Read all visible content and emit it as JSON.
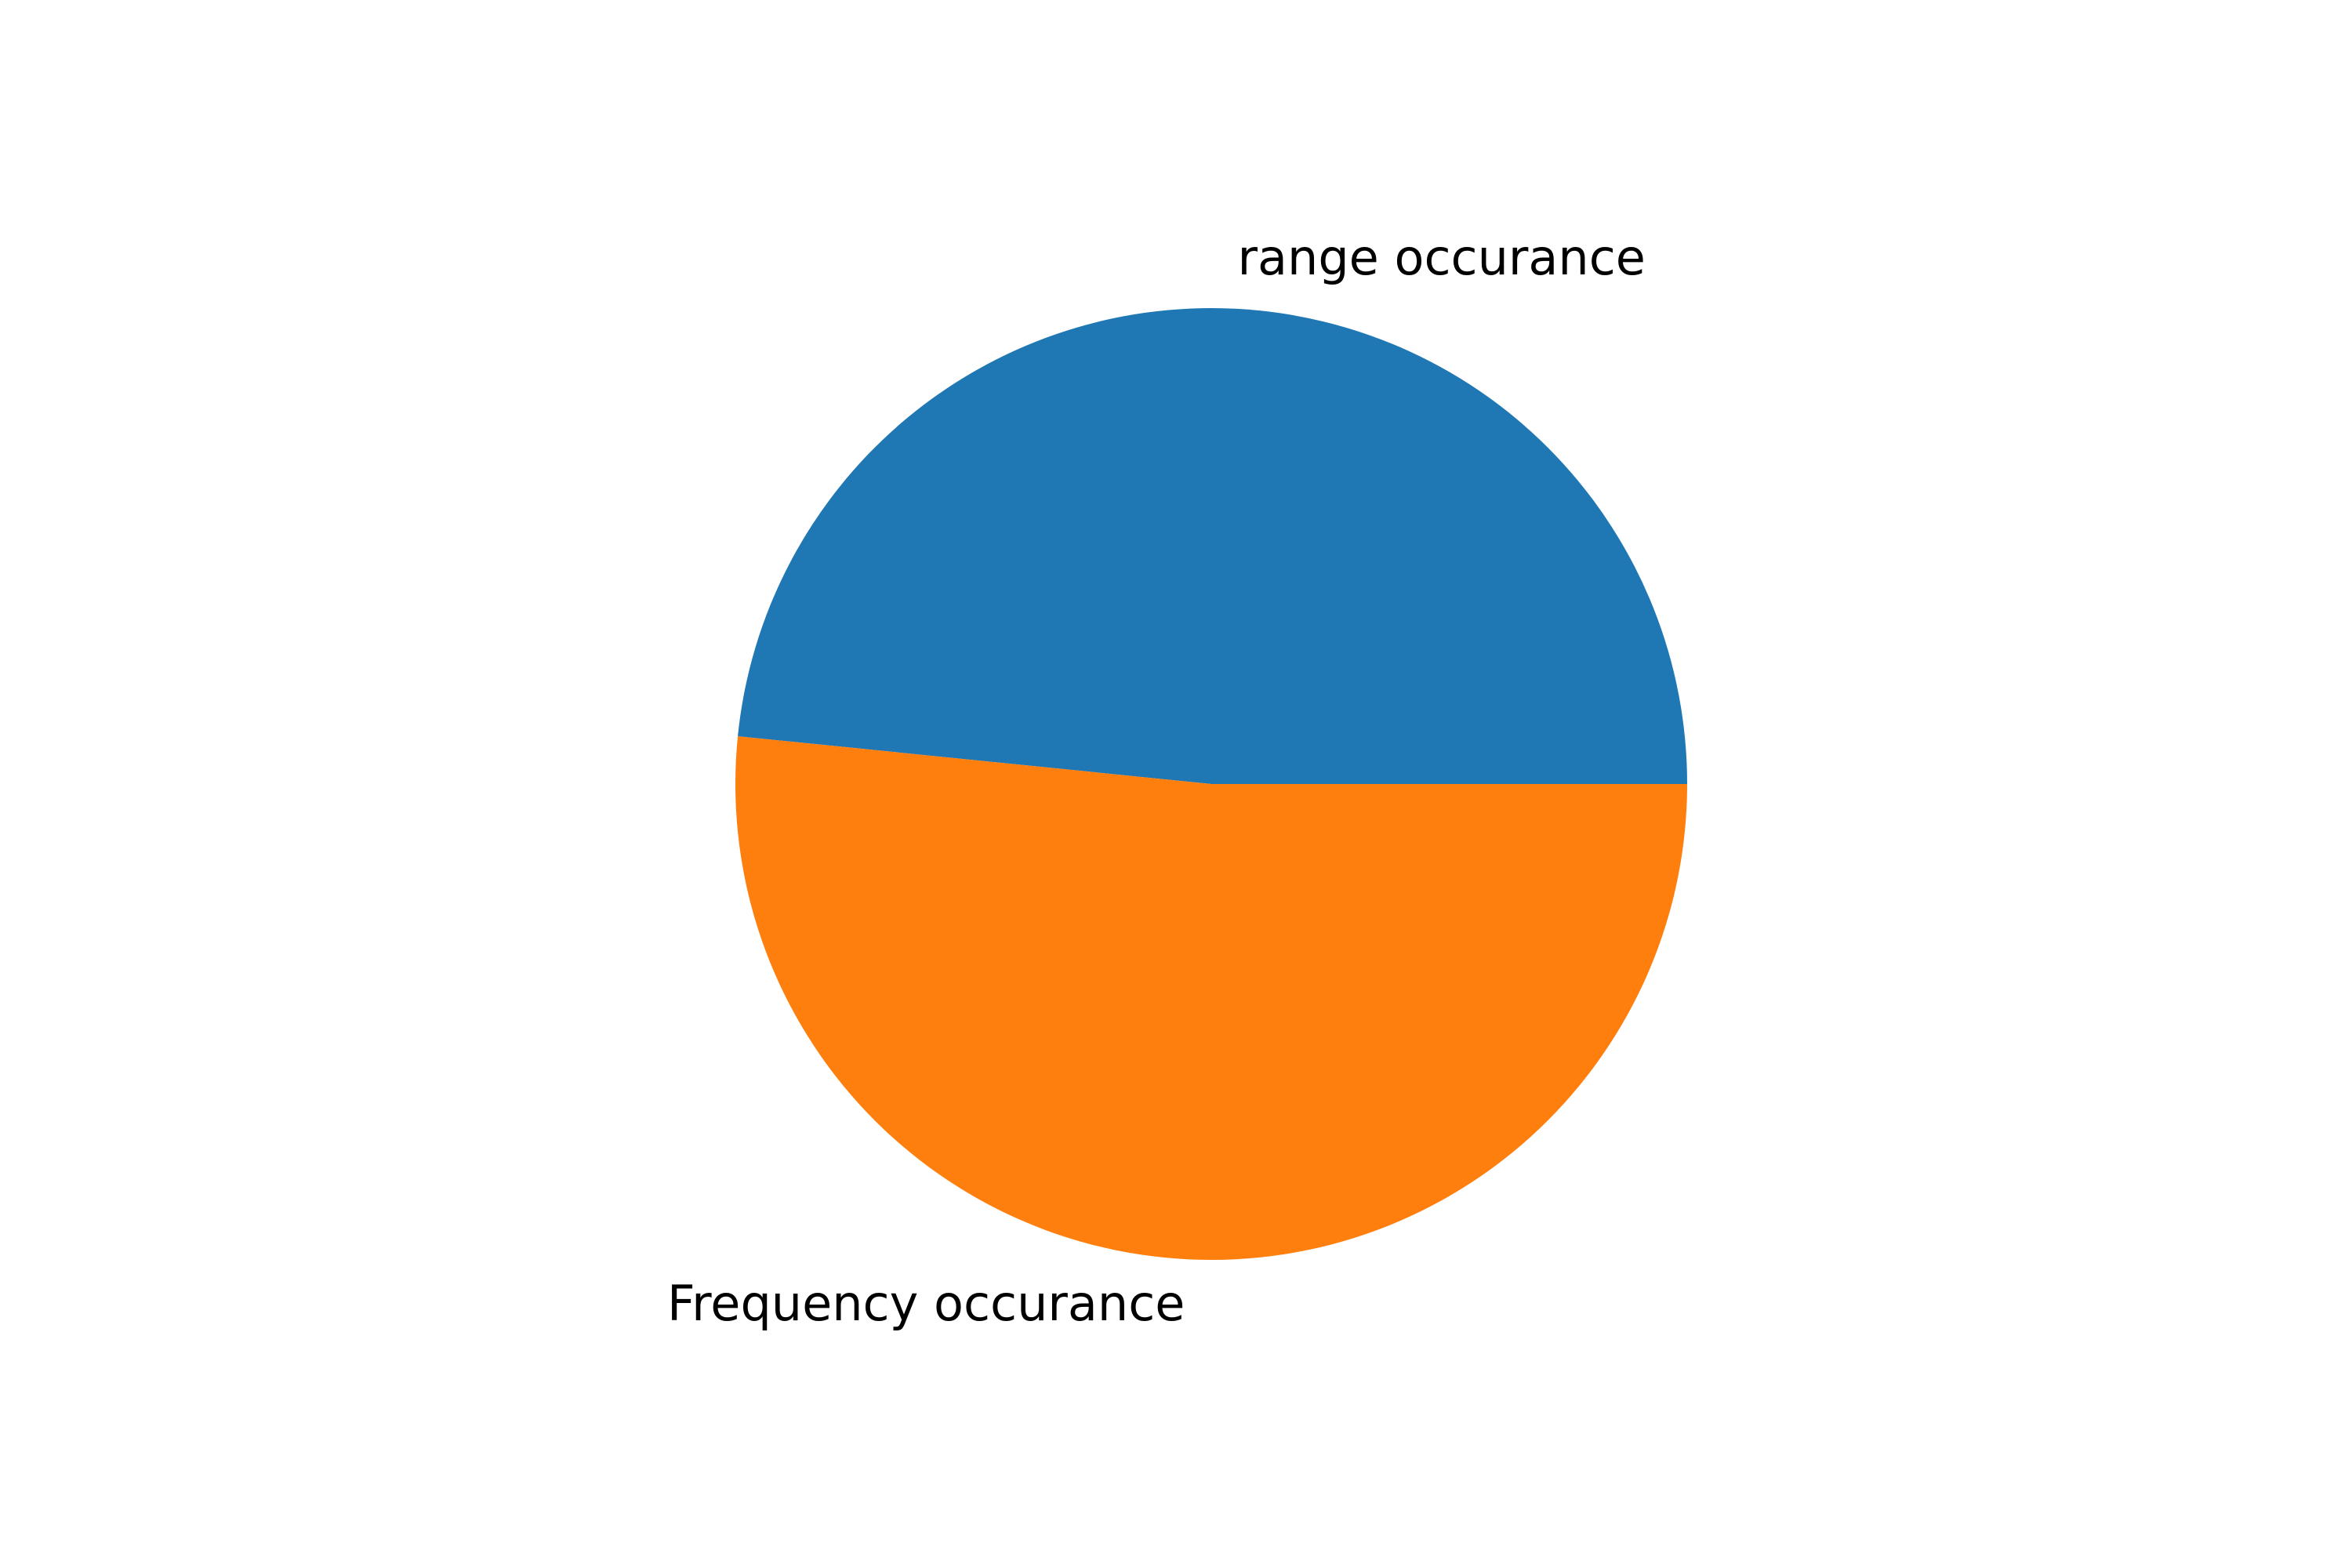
{
  "chart_data": {
    "type": "pie",
    "labels": [
      "range occurance",
      "Frequency occurance"
    ],
    "values": [
      48.4,
      51.6
    ],
    "colors": [
      "#1f77b4",
      "#ff7f0e"
    ],
    "start_angle_deg": 0,
    "direction": "counterclockwise",
    "title": "",
    "legend": "none"
  }
}
